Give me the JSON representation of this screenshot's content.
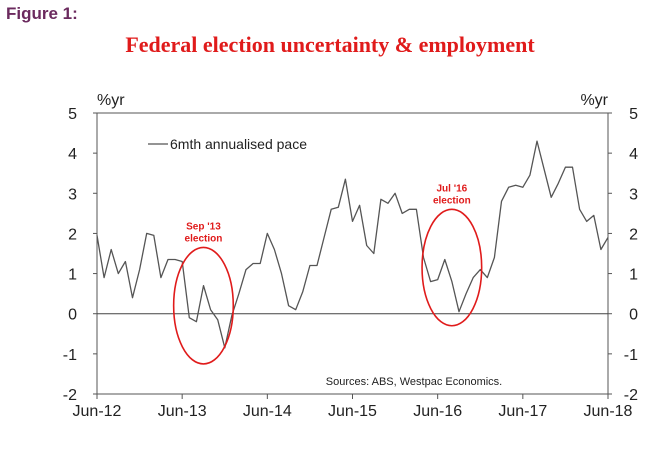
{
  "figure_label": "Figure 1:",
  "chart_data": {
    "type": "line",
    "title": "Federal election uncertainty & employment",
    "ylabel_left": "%yr",
    "ylabel_right": "%yr",
    "ylim": [
      -2,
      5
    ],
    "yticks": [
      5,
      4,
      3,
      2,
      1,
      0,
      -1,
      -2
    ],
    "xlabel": "",
    "x_range": [
      0,
      72
    ],
    "x_ticks": [
      {
        "label": "Jun-12",
        "index": 0
      },
      {
        "label": "Jun-13",
        "index": 12
      },
      {
        "label": "Jun-14",
        "index": 24
      },
      {
        "label": "Jun-15",
        "index": 36
      },
      {
        "label": "Jun-16",
        "index": 48
      },
      {
        "label": "Jun-17",
        "index": 60
      },
      {
        "label": "Jun-18",
        "index": 72
      }
    ],
    "grid": false,
    "zero_line": true,
    "legend": "top-left",
    "series": [
      {
        "name": "6mth annualised pace",
        "color": "#555555",
        "values": [
          1.95,
          0.9,
          1.6,
          1.0,
          1.3,
          0.4,
          1.1,
          2.0,
          1.95,
          0.9,
          1.35,
          1.35,
          1.3,
          -0.1,
          -0.2,
          0.7,
          0.1,
          -0.15,
          -0.85,
          -0.05,
          0.5,
          1.1,
          1.25,
          1.25,
          2.0,
          1.6,
          1.0,
          0.2,
          0.1,
          0.55,
          1.2,
          1.2,
          1.9,
          2.6,
          2.65,
          3.35,
          2.3,
          2.7,
          1.7,
          1.5,
          2.85,
          2.75,
          3.0,
          2.5,
          2.6,
          2.6,
          1.4,
          0.8,
          0.85,
          1.35,
          0.8,
          0.05,
          0.5,
          0.9,
          1.1,
          0.9,
          1.4,
          2.8,
          3.15,
          3.2,
          3.15,
          3.45,
          4.3,
          3.6,
          2.9,
          3.25,
          3.65,
          3.65,
          2.6,
          2.3,
          2.45,
          1.6,
          1.9
        ]
      }
    ],
    "annotations": [
      {
        "lines": [
          "Sep '13",
          "election"
        ],
        "circle_center_index": 15,
        "circle_center_value": 0.2,
        "circle_x_radius_months": 4.2,
        "circle_y_radius_value": 1.45,
        "color": "#e01b1b"
      },
      {
        "lines": [
          "Jul '16",
          "election"
        ],
        "circle_center_index": 50,
        "circle_center_value": 1.15,
        "circle_x_radius_months": 4.2,
        "circle_y_radius_value": 1.45,
        "color": "#e01b1b"
      }
    ],
    "source": "Sources: ABS, Westpac Economics."
  }
}
